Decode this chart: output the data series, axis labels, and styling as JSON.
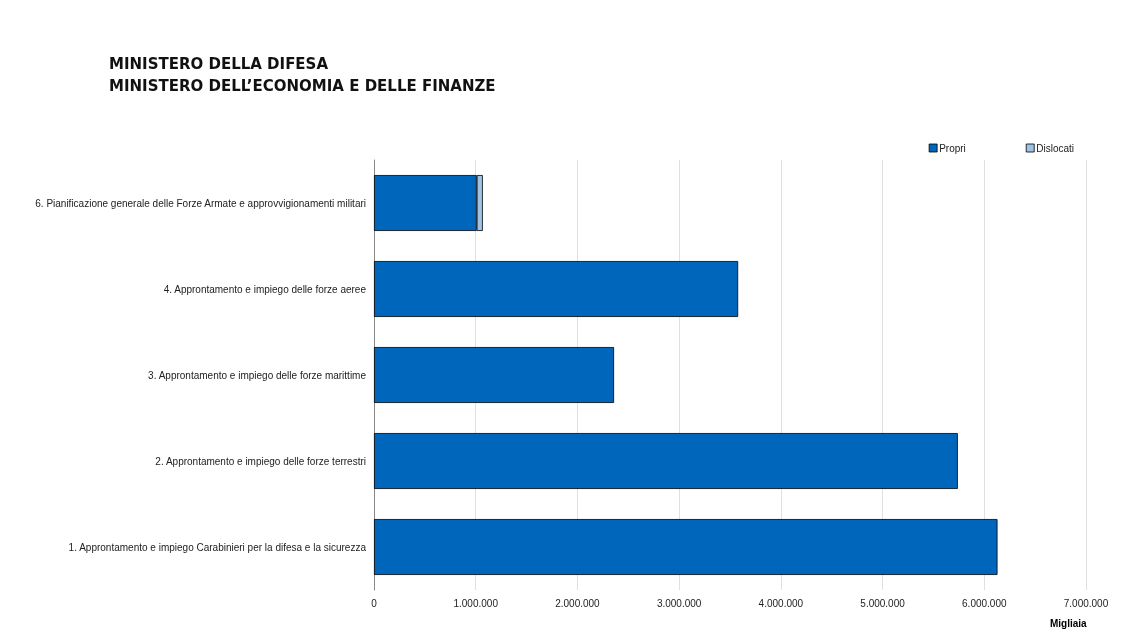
{
  "chart_data": {
    "type": "bar",
    "title": "MINISTERO DELLA DIFESA\nMINISTERO DELL’ECONOMIA E DELLE FINANZE",
    "xlabel": "Migliaia",
    "orientation": "horizontal",
    "stacked": true,
    "categories": [
      "6. Pianificazione generale delle Forze Armate e approvvigionamenti militari",
      "4. Approntamento e impiego delle forze aeree",
      "3. Approntamento e impiego delle forze marittime",
      "2. Approntamento e impiego delle forze terrestri",
      "1. Approntamento e impiego Carabinieri per la difesa e la sicurezza"
    ],
    "series": [
      {
        "name": "Propri",
        "color": "#0066bb",
        "values": [
          1010000,
          3580000,
          2360000,
          5740000,
          6130000
        ]
      },
      {
        "name": "Dislocati",
        "color": "#9dc3e6",
        "values": [
          60000,
          null,
          null,
          null,
          null
        ]
      }
    ],
    "xlim": [
      0,
      7000000
    ],
    "xticks": [
      0,
      {
        "value": 1000000,
        "label": "1.000.000"
      },
      {
        "value": 2000000,
        "label": "2.000.000"
      },
      {
        "value": 3000000,
        "label": "3.000.000"
      },
      {
        "value": 4000000,
        "label": "4.000.000"
      },
      {
        "value": 5000000,
        "label": "5.000.000"
      },
      {
        "value": 6000000,
        "label": "6.000.000"
      },
      {
        "value": 7000000,
        "label": "7.000.000"
      }
    ],
    "grid": "x",
    "legend": "top right"
  }
}
